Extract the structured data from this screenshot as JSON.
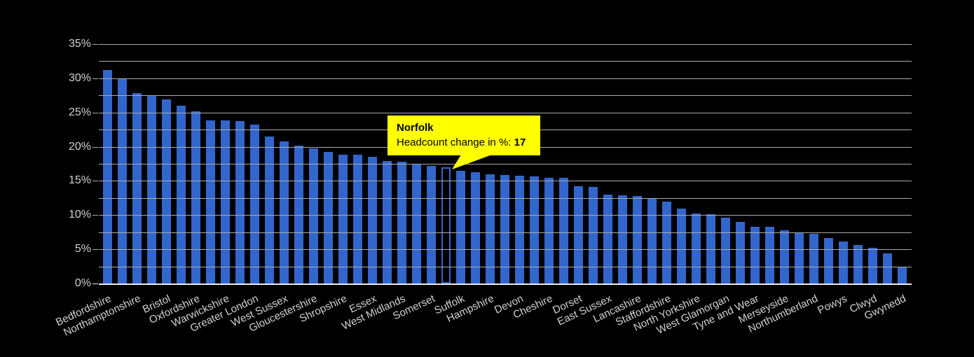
{
  "chart_data": {
    "type": "bar",
    "title": "",
    "series_name": "Headcount change in %",
    "categories": [
      "Bedfordshire",
      "",
      "Northamptonshire",
      "",
      "Bristol",
      "",
      "Oxfordshire",
      "",
      "Warwickshire",
      "",
      "Greater London",
      "",
      "West Sussex",
      "",
      "Gloucestershire",
      "",
      "Shropshire",
      "",
      "Essex",
      "",
      "West Midlands",
      "",
      "Somerset",
      "Norfolk",
      "Suffolk",
      "",
      "Hampshire",
      "",
      "Devon",
      "",
      "Cheshire",
      "",
      "Dorset",
      "",
      "East Sussex",
      "",
      "Lancashire",
      "",
      "Staffordshire",
      "",
      "North Yorkshire",
      "",
      "West Glamorgan",
      "",
      "Tyne and Wear",
      "",
      "Merseyside",
      "",
      "Northumberland",
      "",
      "Powys",
      "",
      "Clwyd",
      "",
      "Gwynedd"
    ],
    "values": [
      31.2,
      30,
      27.8,
      27.5,
      26.9,
      26,
      25.2,
      23.8,
      23.8,
      23.7,
      23.2,
      21.5,
      20.8,
      20.2,
      19.8,
      19.2,
      18.8,
      18.8,
      18.5,
      17.9,
      17.8,
      17.4,
      17.2,
      17,
      16.5,
      16.3,
      16,
      15.9,
      15.8,
      15.7,
      15.5,
      15.5,
      14.2,
      14.1,
      13,
      12.9,
      12.8,
      12.5,
      12,
      11,
      10.2,
      10.1,
      9.6,
      9,
      8.3,
      8.3,
      7.8,
      7.4,
      7.3,
      6.7,
      6.1,
      5.6,
      5.2,
      4.4,
      2.5
    ],
    "axis_labels_on_alternate_bars": true,
    "highlight": {
      "index": 23,
      "label": "Norfolk",
      "value": 17
    },
    "ylim": [
      0,
      35
    ],
    "ytick_step": 5,
    "gridline_step": 2.5,
    "ytick_labels": [
      "0%",
      "5%",
      "10%",
      "15%",
      "20%",
      "25%",
      "30%",
      "35%"
    ],
    "xlabel": "",
    "ylabel": "",
    "legend": "none",
    "grid": true
  },
  "tooltip": {
    "title": "Norfolk",
    "label": "Headcount change in %: ",
    "value": "17"
  },
  "colors": {
    "background": "#000000",
    "bar": "#3366cc",
    "highlight_border": "#3366cc",
    "highlight_fill": "#000000",
    "gridline": "#aaaaaa",
    "baseline": "#ededed",
    "axis_text": "#d2d2d2",
    "tooltip_bg": "#ffff00",
    "tooltip_text": "#000000"
  }
}
